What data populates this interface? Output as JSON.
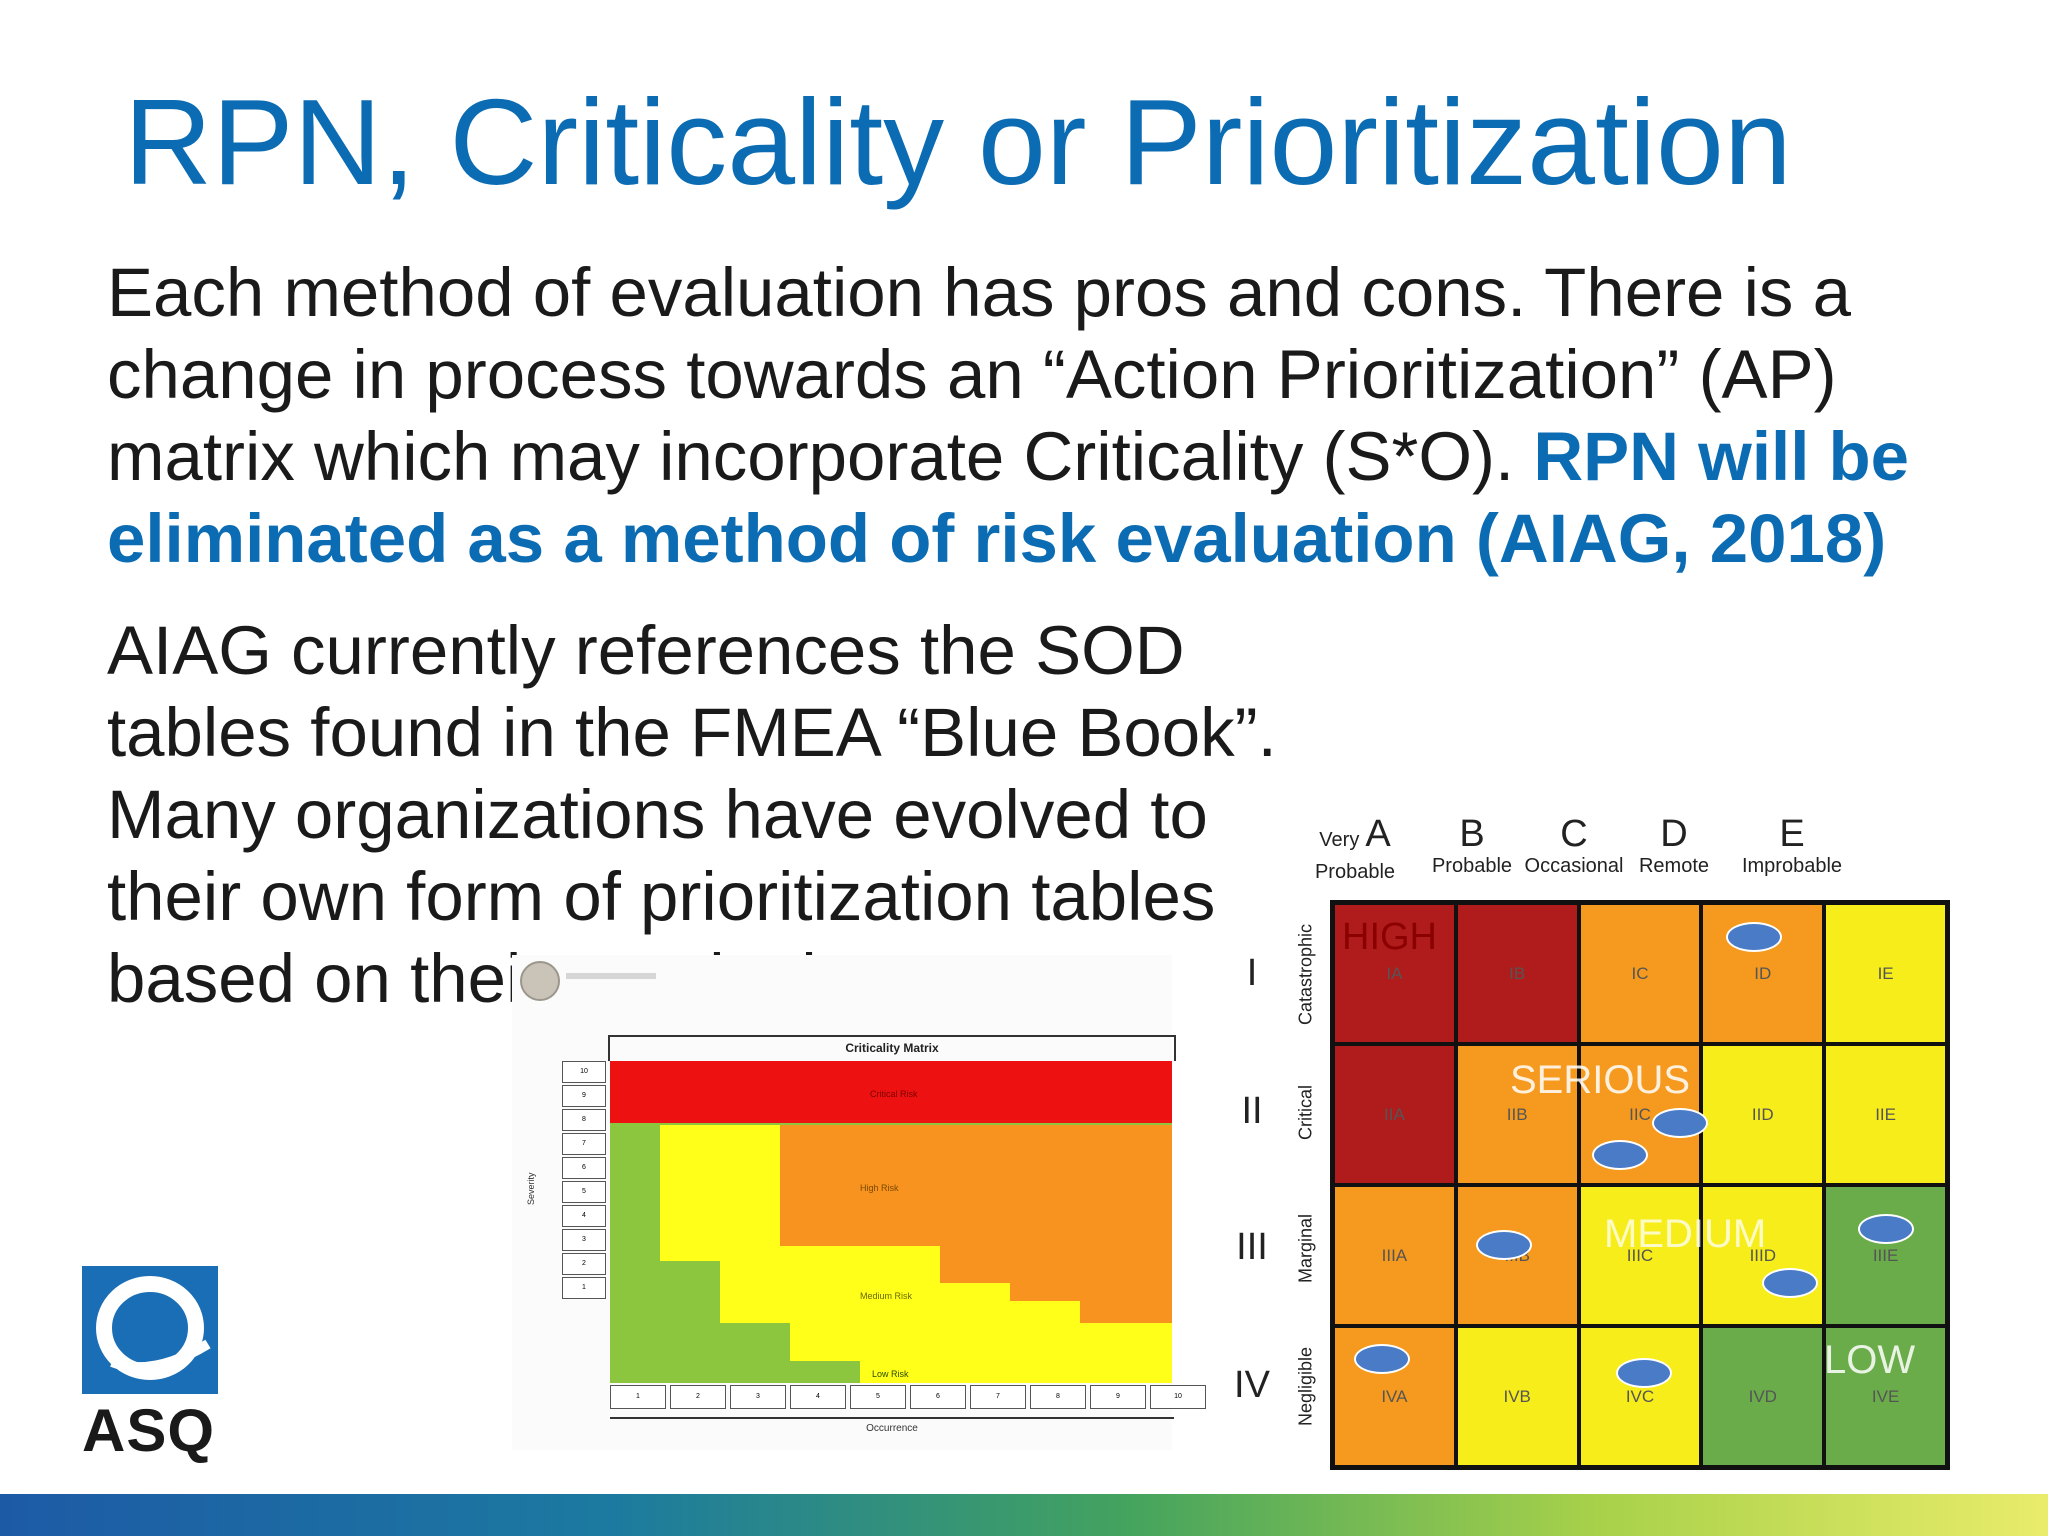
{
  "slide": {
    "title": "RPN, Criticality or Prioritization",
    "para1_text": "Each method of evaluation has pros and cons. There is a change in process towards an “Action Prioritization” (AP) matrix which may incorporate Criticality (S*O). ",
    "para1_emphasis": "RPN will be eliminated as a method of risk evaluation (AIAG, 2018)",
    "para2_text": "AIAG currently references the SOD tables found in the FMEA “Blue Book”. Many organizations have evolved to their own form of prioritization tables based on their own logic"
  },
  "logo": {
    "text": "ASQ",
    "color": "#1a6eb6"
  },
  "criticality_matrix": {
    "title": "Criticality Matrix",
    "y_label": "Severity",
    "x_label": "Occurrence",
    "severity_ticks": [
      "10",
      "9",
      "8",
      "7",
      "6",
      "5",
      "4",
      "3",
      "2",
      "1"
    ],
    "occurrence_ticks": [
      "1",
      "2",
      "3",
      "4",
      "5",
      "6",
      "7",
      "8",
      "9",
      "10"
    ],
    "zones": [
      "Critical Risk",
      "High Risk",
      "Medium Risk",
      "Low Risk"
    ],
    "colors": {
      "red": "#ee1111",
      "orange": "#f7931e",
      "yellow": "#ffff1a",
      "green": "#8cc63f"
    }
  },
  "risk_matrix": {
    "columns": [
      {
        "letter": "A",
        "pre": "Very",
        "word": "Probable"
      },
      {
        "letter": "B",
        "pre": "",
        "word": "Probable"
      },
      {
        "letter": "C",
        "pre": "",
        "word": "Occasional"
      },
      {
        "letter": "D",
        "pre": "",
        "word": "Remote"
      },
      {
        "letter": "E",
        "pre": "",
        "word": "Improbable"
      }
    ],
    "rows": [
      {
        "roman": "I",
        "word": "Catastrophic"
      },
      {
        "roman": "II",
        "word": "Critical"
      },
      {
        "roman": "III",
        "word": "Marginal"
      },
      {
        "roman": "IV",
        "word": "Negligible"
      }
    ],
    "cells": [
      [
        "IA",
        "IB",
        "IC",
        "ID",
        "IE"
      ],
      [
        "IIA",
        "IIB",
        "IIC",
        "IID",
        "IIE"
      ],
      [
        "IIIA",
        "IIIB",
        "IIIC",
        "IIID",
        "IIIE"
      ],
      [
        "IVA",
        "IVB",
        "IVC",
        "IVD",
        "IVE"
      ]
    ],
    "cell_colors": [
      [
        "#b01c1c",
        "#b01c1c",
        "#f59a1e",
        "#f59a1e",
        "#f7ed1a"
      ],
      [
        "#b01c1c",
        "#f59a1e",
        "#f59a1e",
        "#f7ed1a",
        "#f7ed1a"
      ],
      [
        "#f59a1e",
        "#f59a1e",
        "#f7ed1a",
        "#f7ed1a",
        "#6aac4a"
      ],
      [
        "#f59a1e",
        "#f7ed1a",
        "#f7ed1a",
        "#6aac4a",
        "#6aac4a"
      ]
    ],
    "zone_labels": {
      "high": "HIGH",
      "serious": "SERIOUS",
      "medium": "MEDIUM",
      "low": "LOW"
    }
  }
}
